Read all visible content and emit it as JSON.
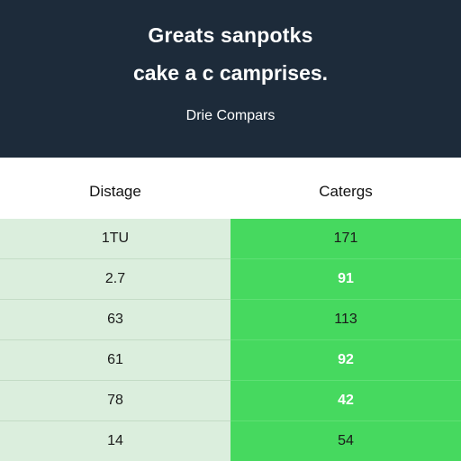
{
  "header": {
    "title": "Greats sanpotks",
    "subtitle": "cake a c camprises.",
    "caption": "Drie Compars"
  },
  "table": {
    "columns": [
      "Distage",
      "Catergs"
    ],
    "rows": [
      {
        "left": "1TU",
        "right": "171",
        "right_light": false
      },
      {
        "left": "2.7",
        "right": "91",
        "right_light": true
      },
      {
        "left": "63",
        "right": "113",
        "right_light": false
      },
      {
        "left": "61",
        "right": "92",
        "right_light": true
      },
      {
        "left": "78",
        "right": "42",
        "right_light": true
      },
      {
        "left": "14",
        "right": "54",
        "right_light": false
      }
    ]
  },
  "colors": {
    "header_bg": "#1d2b3a",
    "left_col_bg": "#dbeedd",
    "right_col_bg": "#46d95f"
  }
}
